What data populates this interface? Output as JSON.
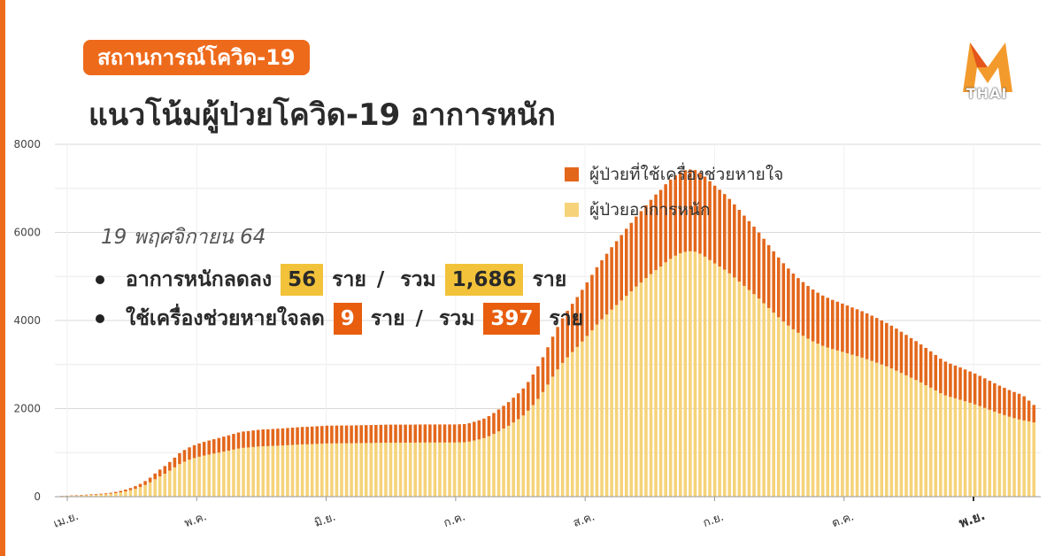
{
  "header": {
    "tag": "สถานการณ์โควิด-19",
    "title": "แนวโน้มผู้ป่วยโควิด-19 อาการหนัก",
    "logo_text": "THAI"
  },
  "legend": {
    "ventilator_label": "ผู้ป่วยที่ใช้เครื่องช่วยหายใจ",
    "severe_label": "ผู้ป่วยอาการหนัก"
  },
  "annotation": {
    "date": "19 พฤศจิกายน 64",
    "severe": {
      "label": "อาการหนักลดลง",
      "change": "56",
      "unit": "ราย",
      "sep": "/",
      "total_label": "รวม",
      "total": "1,686",
      "total_unit": "ราย"
    },
    "ventilator": {
      "label": "ใช้เครื่องช่วยหายใจลด",
      "change": "9",
      "unit": "ราย",
      "sep": "/",
      "total_label": "รวม",
      "total": "397",
      "total_unit": "ราย"
    }
  },
  "colors": {
    "severe": "#f6d37a",
    "ventilator": "#e3671b",
    "accent": "#ee6a1b"
  },
  "chart_data": {
    "type": "bar",
    "stacked": true,
    "ylim": [
      0,
      8000
    ],
    "y_ticks": [
      "0",
      "2000",
      "4000",
      "6000",
      "8000"
    ],
    "x_ticks": [
      "เม.ย.",
      "พ.ค.",
      "มิ.ย.",
      "ก.ค.",
      "ส.ค.",
      "ก.ย.",
      "ต.ค.",
      "พ.ย."
    ],
    "grid": true,
    "legend_position": "top-right",
    "series": [
      {
        "name": "ผู้ป่วยอาการหนัก",
        "values": [
          14,
          17,
          21,
          25,
          29,
          34,
          39,
          45,
          51,
          57,
          67,
          81,
          99,
          121,
          147,
          179,
          218,
          266,
          324,
          395,
          462,
          522,
          591,
          665,
          741,
          795,
          840,
          877,
          907,
          933,
          957,
          979,
          1000,
          1022,
          1045,
          1069,
          1093,
          1109,
          1117,
          1128,
          1138,
          1145,
          1148,
          1153,
          1158,
          1163,
          1169,
          1175,
          1181,
          1187,
          1189,
          1194,
          1199,
          1204,
          1209,
          1210,
          1211,
          1212,
          1212,
          1213,
          1215,
          1217,
          1219,
          1220,
          1222,
          1224,
          1226,
          1227,
          1227,
          1227,
          1227,
          1227,
          1228,
          1229,
          1230,
          1230,
          1230,
          1230,
          1230,
          1230,
          1230,
          1233,
          1236,
          1250,
          1275,
          1300,
          1330,
          1372,
          1425,
          1485,
          1547,
          1610,
          1685,
          1760,
          1843,
          1953,
          2080,
          2220,
          2375,
          2545,
          2725,
          2890,
          3037,
          3165,
          3284,
          3400,
          3522,
          3649,
          3777,
          3907,
          4026,
          4136,
          4248,
          4351,
          4455,
          4562,
          4662,
          4770,
          4862,
          4962,
          5055,
          5145,
          5224,
          5320,
          5400,
          5471,
          5526,
          5559,
          5571,
          5562,
          5518,
          5450,
          5372,
          5296,
          5226,
          5153,
          5070,
          4977,
          4883,
          4786,
          4692,
          4598,
          4498,
          4391,
          4283,
          4178,
          4074,
          3975,
          3885,
          3800,
          3722,
          3654,
          3589,
          3527,
          3474,
          3425,
          3387,
          3351,
          3320,
          3289,
          3256,
          3223,
          3191,
          3158,
          3121,
          3083,
          3043,
          3001,
          2958,
          2912,
          2862,
          2809,
          2755,
          2701,
          2649,
          2592,
          2533,
          2475,
          2413,
          2350,
          2300,
          2265,
          2233,
          2201,
          2167,
          2132,
          2096,
          2057,
          2015,
          1973,
          1931,
          1891,
          1853,
          1816,
          1783,
          1752,
          1730,
          1710,
          1686
        ]
      },
      {
        "name": "ผู้ป่วยที่ใช้เครื่องช่วยหายใจ",
        "values": [
          4,
          5,
          7,
          9,
          10,
          12,
          13,
          15,
          17,
          19,
          22,
          27,
          33,
          40,
          49,
          60,
          73,
          89,
          108,
          132,
          154,
          174,
          197,
          222,
          247,
          265,
          280,
          292,
          302,
          311,
          319,
          326,
          333,
          341,
          348,
          356,
          364,
          370,
          372,
          376,
          379,
          382,
          383,
          384,
          386,
          388,
          390,
          392,
          394,
          396,
          396,
          398,
          400,
          401,
          403,
          403,
          404,
          404,
          404,
          404,
          405,
          406,
          406,
          407,
          407,
          408,
          409,
          409,
          409,
          409,
          409,
          409,
          409,
          410,
          410,
          410,
          410,
          410,
          410,
          410,
          410,
          411,
          412,
          417,
          425,
          433,
          443,
          457,
          475,
          495,
          516,
          537,
          562,
          587,
          614,
          651,
          693,
          740,
          792,
          848,
          908,
          963,
          1012,
          1055,
          1095,
          1133,
          1174,
          1216,
          1259,
          1302,
          1342,
          1379,
          1416,
          1450,
          1485,
          1521,
          1554,
          1590,
          1621,
          1654,
          1685,
          1715,
          1741,
          1773,
          1800,
          1824,
          1842,
          1853,
          1857,
          1854,
          1839,
          1817,
          1791,
          1765,
          1742,
          1718,
          1690,
          1659,
          1628,
          1595,
          1564,
          1533,
          1499,
          1464,
          1428,
          1393,
          1358,
          1325,
          1295,
          1267,
          1241,
          1218,
          1196,
          1176,
          1158,
          1142,
          1129,
          1117,
          1107,
          1096,
          1085,
          1074,
          1064,
          1053,
          1040,
          1028,
          1014,
          1000,
          986,
          971,
          954,
          936,
          918,
          900,
          883,
          864,
          844,
          825,
          804,
          783,
          767,
          755,
          744,
          734,
          722,
          711,
          699,
          686,
          672,
          658,
          644,
          630,
          618,
          605,
          594,
          584,
          550,
          470,
          397
        ]
      }
    ]
  }
}
